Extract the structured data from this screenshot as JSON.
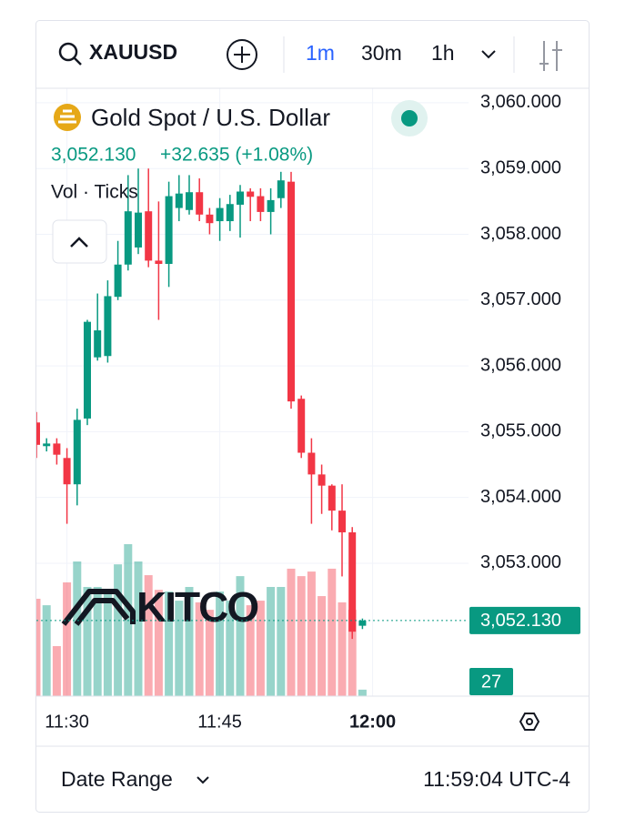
{
  "toolbar": {
    "symbol": "XAUUSD",
    "intervals": [
      "1m",
      "30m",
      "1h"
    ]
  },
  "chart_data": {
    "type": "candlestick",
    "title": "Gold Spot / U.S. Dollar",
    "last_price": {
      "value": 3052.13,
      "label": "3,052.130"
    },
    "change_label": "+32.635 (+1.08%)",
    "volume_label": "Vol · Ticks",
    "watermark": "KITCO",
    "up_color": "#089981",
    "down_color": "#f23645",
    "open": [
      3055.14,
      3054.78,
      3054.82,
      3054.6,
      3054.2,
      3055.2,
      3056.13,
      3056.15,
      3057.05,
      3057.54,
      3057.8,
      3058.35,
      3057.6,
      3057.55,
      3058.4,
      3058.37,
      3058.64,
      3058.3,
      3058.2,
      3058.2,
      3058.45,
      3058.65,
      3058.58,
      3058.34,
      3058.55,
      3058.8,
      3055.5,
      3054.68,
      3054.35,
      3054.18,
      3053.8,
      3053.47,
      3052.05
    ],
    "high": [
      3055.3,
      3054.9,
      3054.9,
      3054.75,
      3055.35,
      3056.7,
      3057.1,
      3057.3,
      3057.9,
      3058.9,
      3059.0,
      3059.0,
      3058.5,
      3058.8,
      3058.9,
      3058.9,
      3058.85,
      3058.4,
      3058.55,
      3058.6,
      3058.75,
      3058.7,
      3058.7,
      3058.7,
      3058.95,
      3058.95,
      3055.55,
      3054.9,
      3054.5,
      3054.2,
      3054.2,
      3053.55,
      3052.16
    ],
    "low": [
      3054.6,
      3054.7,
      3054.5,
      3053.6,
      3053.88,
      3055.1,
      3056.08,
      3056.05,
      3057.0,
      3057.45,
      3057.7,
      3057.5,
      3056.7,
      3057.2,
      3058.2,
      3058.3,
      3058.2,
      3058.0,
      3057.9,
      3058.05,
      3057.95,
      3058.2,
      3058.2,
      3058.0,
      3058.4,
      3055.35,
      3054.6,
      3053.6,
      3053.75,
      3053.5,
      3052.8,
      3051.85,
      3052.0
    ],
    "close": [
      3054.8,
      3054.82,
      3054.65,
      3054.2,
      3055.18,
      3056.67,
      3056.54,
      3057.06,
      3057.54,
      3058.35,
      3058.33,
      3057.6,
      3057.55,
      3058.58,
      3058.62,
      3058.64,
      3058.3,
      3058.17,
      3058.4,
      3058.46,
      3058.65,
      3058.57,
      3058.34,
      3058.52,
      3058.82,
      3055.46,
      3054.68,
      3054.35,
      3054.18,
      3053.8,
      3053.47,
      3051.96,
      3052.13
    ],
    "volume": [
      405,
      378,
      208,
      473,
      560,
      454,
      454,
      435,
      548,
      632,
      560,
      503,
      442,
      435,
      397,
      454,
      390,
      359,
      435,
      397,
      499,
      378,
      397,
      454,
      454,
      530,
      499,
      518,
      416,
      530,
      390,
      359,
      27
    ],
    "ylim": [
      3050.98,
      3060.22
    ],
    "yticks": [
      {
        "value": 3053,
        "label": "3,053.000"
      },
      {
        "value": 3054,
        "label": "3,054.000"
      },
      {
        "value": 3055,
        "label": "3,055.000"
      },
      {
        "value": 3056,
        "label": "3,056.000"
      },
      {
        "value": 3057,
        "label": "3,057.000"
      },
      {
        "value": 3058,
        "label": "3,058.000"
      },
      {
        "value": 3059,
        "label": "3,059.000"
      },
      {
        "value": 3060,
        "label": "3,060.000"
      }
    ],
    "volume_lim": [
      0,
      700
    ],
    "xlim": [
      0,
      33
    ],
    "xticks": [
      {
        "value": 3,
        "label": "11:30"
      },
      {
        "value": 18,
        "label": "11:45"
      },
      {
        "value": 33,
        "label": "12:00"
      }
    ]
  },
  "footer": {
    "date_range": "Date Range",
    "time": "11:59:04 UTC-4"
  }
}
